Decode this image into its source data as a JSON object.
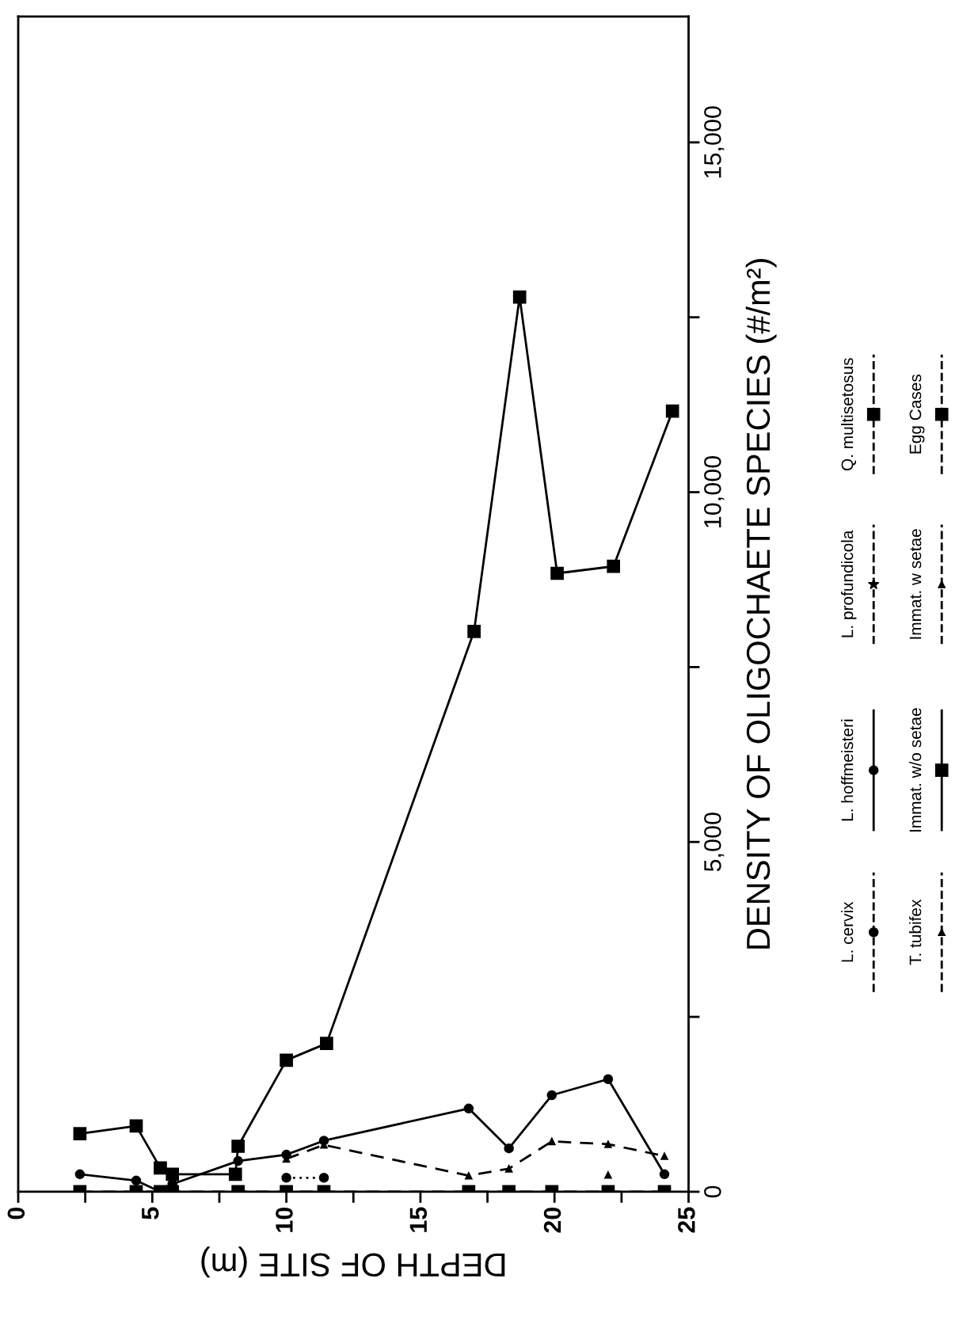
{
  "chart_data": {
    "type": "line",
    "xlabel": "DEPTH OF SITE (m)",
    "ylabel": "DENSITY OF OLIGOCHAETE SPECIES (#/m²)",
    "x": [
      2.3,
      4.4,
      5.3,
      5.75,
      8.2,
      10.0,
      11.4,
      16.8,
      18.3,
      19.9,
      22.0,
      24.1
    ],
    "xlim": [
      0,
      25
    ],
    "xticks": [
      0,
      {
        "value": 2.5,
        "label": null
      },
      5,
      {
        "value": 7.5,
        "label": null
      },
      10,
      {
        "value": 12.5,
        "label": null
      },
      15,
      {
        "value": 17.5,
        "label": null
      },
      20,
      {
        "value": 22.5,
        "label": null
      },
      25
    ],
    "ylim": [
      0,
      16800
    ],
    "yticks": [
      0,
      {
        "value": 2500,
        "label": null
      },
      {
        "value": 5000,
        "label": "5,000"
      },
      {
        "value": 7500,
        "label": null
      },
      {
        "value": 10000,
        "label": "10,000"
      },
      {
        "value": 12500,
        "label": null
      },
      {
        "value": 15000,
        "label": "15,000"
      }
    ],
    "grid": false,
    "legend": "right",
    "series": [
      {
        "name": "L. cervix",
        "color": "#000000",
        "marker": "circle",
        "line_style": "dotted",
        "values": [
          null,
          null,
          null,
          null,
          null,
          200,
          200,
          null,
          null,
          null,
          null,
          null
        ]
      },
      {
        "name": "L. hoffmeisteri",
        "color": "#000000",
        "marker": "circle",
        "line_style": "solid",
        "values": [
          250,
          160,
          0,
          110,
          440,
          530,
          730,
          1190,
          620,
          1380,
          1610,
          250
        ]
      },
      {
        "name": "L. profundicola",
        "color": "#000000",
        "marker": "star",
        "line_style": "dashed",
        "values": [
          null,
          null,
          null,
          null,
          null,
          null,
          null,
          null,
          null,
          null,
          null,
          null
        ]
      },
      {
        "name": "Q. multisetosus",
        "color": "#000000",
        "marker": "square",
        "line_style": "dotted",
        "values": [
          null,
          null,
          null,
          null,
          null,
          null,
          null,
          null,
          null,
          null,
          null,
          null
        ]
      },
      {
        "name": "T. tubifex",
        "color": "#000000",
        "marker": "triangle",
        "line_style": "dashed",
        "values": [
          null,
          null,
          null,
          null,
          null,
          null,
          null,
          null,
          null,
          null,
          240,
          null
        ]
      },
      {
        "name": "Immat. w/o setae",
        "color": "#000000",
        "marker": "square",
        "line_style": "solid",
        "x": [
          2.3,
          4.4,
          5.3,
          5.75,
          8.1,
          8.2,
          10.0,
          11.5,
          17.0,
          18.7,
          20.1,
          22.2,
          24.4
        ],
        "values": [
          830,
          940,
          340,
          250,
          250,
          650,
          1880,
          2120,
          8010,
          12790,
          8840,
          8940,
          11160
        ]
      },
      {
        "name": "Immat. w setae",
        "color": "#000000",
        "marker": "triangle",
        "line_style": "dashed",
        "values": [
          null,
          null,
          null,
          null,
          null,
          470,
          670,
          230,
          330,
          720,
          680,
          510
        ]
      },
      {
        "name": "Egg Cases",
        "color": "#000000",
        "marker": "square",
        "line_style": "dashed",
        "values": [
          0,
          0,
          0,
          0,
          0,
          0,
          0,
          0,
          0,
          0,
          0,
          0
        ]
      }
    ]
  }
}
